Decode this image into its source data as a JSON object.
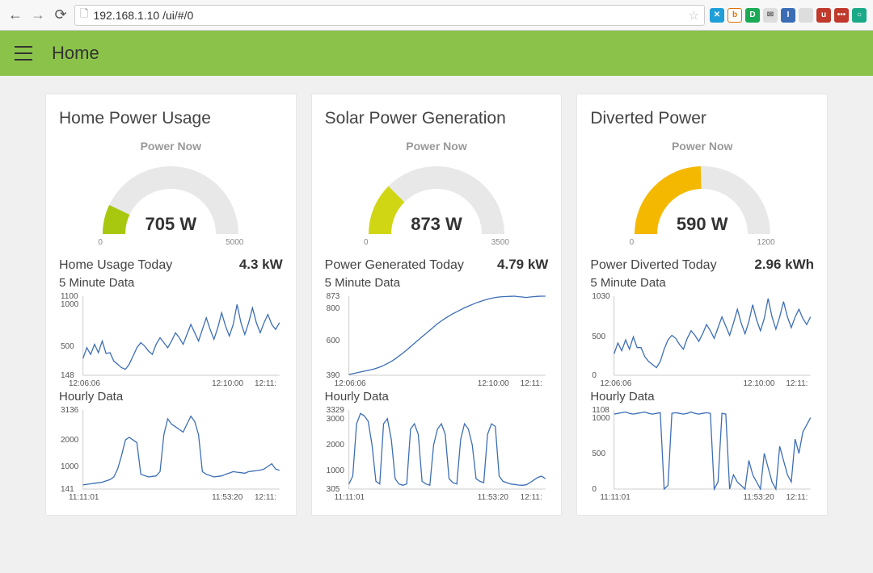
{
  "browser": {
    "url": "192.168.1.10     /ui/#/0",
    "icons": [
      {
        "bg": "#1e9fd8",
        "txt": "✕",
        "name": "ext-close"
      },
      {
        "bg": "#fff",
        "txt": "b",
        "fg": "#e07000",
        "name": "ext-b",
        "border": "#e07000"
      },
      {
        "bg": "#1aaa55",
        "txt": "D",
        "name": "ext-d"
      },
      {
        "bg": "#ddd",
        "txt": "✉",
        "fg": "#666",
        "name": "ext-mail"
      },
      {
        "bg": "#3b6db5",
        "txt": "I",
        "name": "ext-i"
      },
      {
        "bg": "#ddd",
        "txt": "",
        "fg": "#333",
        "name": "ext-pocket"
      },
      {
        "bg": "#c0392b",
        "txt": "u",
        "name": "ext-u"
      },
      {
        "bg": "#c0392b",
        "txt": "•••",
        "name": "ext-lastpass"
      },
      {
        "bg": "#1aaa88",
        "txt": "○",
        "name": "ext-o"
      }
    ]
  },
  "app": {
    "title": "Home",
    "header_bg": "#8bc34a"
  },
  "cards": [
    {
      "title": "Home Power Usage",
      "power_now_label": "Power Now",
      "gauge": {
        "value_text": "705 W",
        "value": 705,
        "min": 0,
        "max": 5000,
        "min_label": "0",
        "max_label": "5000",
        "fg": "#a7c80f",
        "bg": "#e8e8e8"
      },
      "today": {
        "label": "Home Usage Today",
        "value": "4.3 kW"
      },
      "minute": {
        "label": "5 Minute Data",
        "yticks": [
          {
            "v": 1100,
            "t": "1100"
          },
          {
            "v": 1000,
            "t": "1000"
          },
          {
            "v": 500,
            "t": "500"
          },
          {
            "v": 148,
            "t": "148"
          }
        ],
        "xticks": [
          "12:06:06",
          "12:10:00",
          "12:11:"
        ],
        "ylim": [
          148,
          1100
        ],
        "stroke": "#3b6db5",
        "points": [
          350,
          480,
          400,
          520,
          420,
          560,
          410,
          420,
          320,
          280,
          240,
          220,
          280,
          380,
          480,
          540,
          500,
          440,
          400,
          520,
          600,
          540,
          480,
          560,
          660,
          600,
          520,
          640,
          760,
          660,
          560,
          700,
          840,
          700,
          580,
          720,
          900,
          740,
          620,
          760,
          1000,
          780,
          640,
          780,
          960,
          780,
          660,
          780,
          880,
          760,
          700,
          780
        ]
      },
      "hourly": {
        "label": "Hourly Data",
        "yticks": [
          {
            "v": 3136,
            "t": "3136"
          },
          {
            "v": 2000,
            "t": "2000"
          },
          {
            "v": 1000,
            "t": "1000"
          },
          {
            "v": 141,
            "t": "141"
          }
        ],
        "xticks": [
          "11:11:01",
          "11:53:20",
          "12:11:"
        ],
        "ylim": [
          141,
          3136
        ],
        "stroke": "#3b6db5",
        "points": [
          300,
          320,
          340,
          360,
          380,
          400,
          450,
          500,
          600,
          900,
          1400,
          2000,
          2100,
          2000,
          1900,
          700,
          650,
          600,
          620,
          640,
          800,
          2200,
          2800,
          2600,
          2500,
          2400,
          2300,
          2600,
          2900,
          2700,
          2200,
          800,
          700,
          650,
          600,
          620,
          640,
          700,
          750,
          800,
          780,
          760,
          740,
          800,
          820,
          840,
          860,
          900,
          1000,
          1100,
          900,
          850
        ]
      }
    },
    {
      "title": "Solar Power Generation",
      "power_now_label": "Power Now",
      "gauge": {
        "value_text": "873 W",
        "value": 873,
        "min": 0,
        "max": 3500,
        "min_label": "0",
        "max_label": "3500",
        "fg": "#d1d614",
        "bg": "#e8e8e8"
      },
      "today": {
        "label": "Power Generated Today",
        "value": "4.79 kW"
      },
      "minute": {
        "label": "5 Minute Data",
        "yticks": [
          {
            "v": 873,
            "t": "873"
          },
          {
            "v": 800,
            "t": "800"
          },
          {
            "v": 600,
            "t": "600"
          },
          {
            "v": 390,
            "t": "390"
          }
        ],
        "xticks": [
          "12:06:06",
          "12:10:00",
          "12:11:"
        ],
        "ylim": [
          390,
          873
        ],
        "stroke": "#3b6db5",
        "points": [
          395,
          400,
          405,
          410,
          415,
          420,
          425,
          432,
          440,
          450,
          462,
          475,
          490,
          508,
          525,
          545,
          565,
          585,
          605,
          625,
          645,
          665,
          685,
          705,
          722,
          738,
          752,
          766,
          778,
          790,
          802,
          812,
          822,
          832,
          840,
          848,
          855,
          860,
          865,
          868,
          870,
          871,
          872,
          873,
          870,
          868,
          865,
          868,
          870,
          872,
          873,
          873
        ]
      },
      "hourly": {
        "label": "Hourly Data",
        "yticks": [
          {
            "v": 3329,
            "t": "3329"
          },
          {
            "v": 3000,
            "t": "3000"
          },
          {
            "v": 2000,
            "t": "2000"
          },
          {
            "v": 1000,
            "t": "1000"
          },
          {
            "v": 305,
            "t": "305"
          }
        ],
        "xticks": [
          "11:11:01",
          "11:53:20",
          "12:11:"
        ],
        "ylim": [
          305,
          3329
        ],
        "stroke": "#3b6db5",
        "points": [
          500,
          800,
          2800,
          3200,
          3100,
          2900,
          2000,
          600,
          500,
          2800,
          3000,
          2200,
          700,
          500,
          450,
          500,
          2600,
          2800,
          2400,
          600,
          500,
          450,
          2000,
          2600,
          2800,
          2400,
          700,
          550,
          500,
          2200,
          2800,
          2600,
          2000,
          700,
          600,
          550,
          2400,
          2800,
          2700,
          800,
          600,
          550,
          500,
          480,
          460,
          450,
          470,
          550,
          650,
          750,
          800,
          700
        ]
      }
    },
    {
      "title": "Diverted Power",
      "power_now_label": "Power Now",
      "gauge": {
        "value_text": "590 W",
        "value": 590,
        "min": 0,
        "max": 1200,
        "min_label": "0",
        "max_label": "1200",
        "fg": "#f5b800",
        "bg": "#e8e8e8"
      },
      "today": {
        "label": "Power Diverted Today",
        "value": "2.96 kWh"
      },
      "minute": {
        "label": "5 Minute Data",
        "yticks": [
          {
            "v": 1030,
            "t": "1030"
          },
          {
            "v": 500,
            "t": "500"
          },
          {
            "v": 0,
            "t": "0"
          }
        ],
        "xticks": [
          "12:06:06",
          "12:10:00",
          "12:11:"
        ],
        "ylim": [
          0,
          1030
        ],
        "stroke": "#3b6db5",
        "points": [
          280,
          420,
          320,
          460,
          340,
          500,
          360,
          360,
          240,
          180,
          140,
          100,
          180,
          340,
          460,
          520,
          480,
          400,
          340,
          480,
          580,
          520,
          440,
          540,
          660,
          580,
          480,
          620,
          760,
          640,
          520,
          680,
          860,
          680,
          540,
          700,
          920,
          720,
          580,
          740,
          1000,
          760,
          600,
          760,
          960,
          760,
          620,
          760,
          860,
          740,
          660,
          760
        ]
      },
      "hourly": {
        "label": "Hourly Data",
        "yticks": [
          {
            "v": 1108,
            "t": "1108"
          },
          {
            "v": 1000,
            "t": "1000"
          },
          {
            "v": 500,
            "t": "500"
          },
          {
            "v": 0,
            "t": "0"
          }
        ],
        "xticks": [
          "11:11:01",
          "11:53:20",
          "12:11:"
        ],
        "ylim": [
          0,
          1108
        ],
        "stroke": "#3b6db5",
        "points": [
          1050,
          1060,
          1070,
          1080,
          1060,
          1050,
          1060,
          1070,
          1080,
          1060,
          1050,
          1060,
          1070,
          0,
          50,
          1060,
          1070,
          1060,
          1050,
          1060,
          1080,
          1060,
          1050,
          1060,
          1070,
          1060,
          0,
          100,
          1060,
          1050,
          0,
          200,
          100,
          50,
          0,
          400,
          200,
          100,
          0,
          500,
          300,
          100,
          0,
          600,
          400,
          200,
          100,
          700,
          500,
          800,
          900,
          1000
        ]
      }
    }
  ],
  "style": {
    "card_bg": "#ffffff",
    "page_bg": "#f0f0f0",
    "text": "#444",
    "subtext": "#999",
    "chart_stroke": "#3b6db5",
    "gauge_track": "#e8e8e8",
    "tick_color": "#555",
    "tick_fontsize": 10
  }
}
